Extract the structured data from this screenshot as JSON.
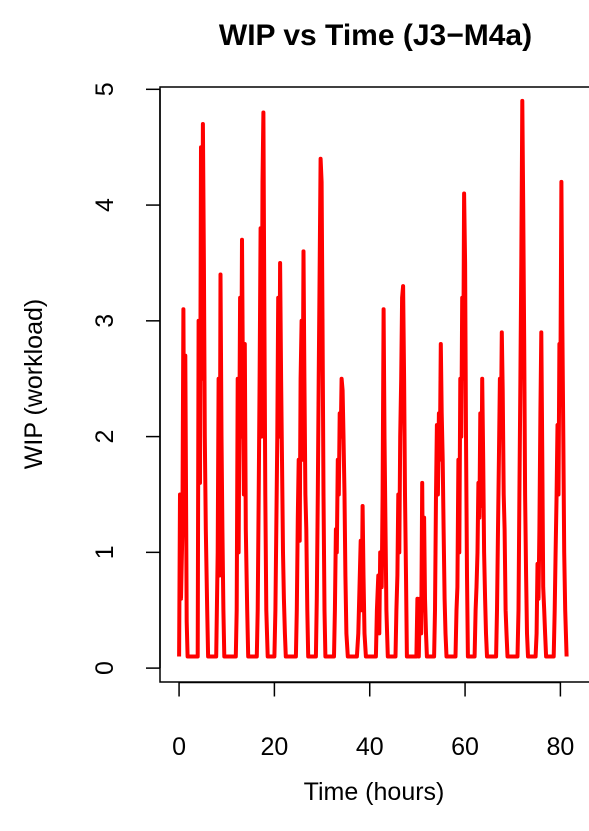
{
  "chart_data": {
    "type": "line",
    "title": "WIP vs Time (J3−M4a)",
    "xlabel": "Time (hours)",
    "ylabel": "WIP (workload)",
    "xlim": [
      -4,
      86
    ],
    "ylim": [
      -0.12,
      5.02
    ],
    "x_ticks": [
      0,
      20,
      40,
      60,
      80
    ],
    "y_ticks": [
      0,
      1,
      2,
      3,
      4,
      5
    ],
    "series_color": "#ff0000",
    "series": [
      {
        "x": [
          0,
          0.2,
          0.4,
          0.7,
          0.9,
          1.1,
          1.3,
          1.6,
          1.8,
          2.0,
          2.2,
          2.4,
          3.9,
          4.1,
          4.4,
          4.6,
          4.8,
          5.0,
          5.2,
          5.4,
          5.6,
          5.9,
          6.1,
          6.4,
          7.6,
          7.8,
          8.1,
          8.3,
          8.5,
          8.7,
          8.9,
          9.1,
          9.3,
          9.5,
          9.7,
          10.0,
          11.6,
          11.9,
          12.1,
          12.3,
          12.5,
          12.8,
          13.0,
          13.2,
          13.4,
          13.6,
          13.8,
          14.0,
          14.3,
          14.5,
          14.7,
          15.0,
          16.0,
          16.3,
          16.5,
          16.7,
          16.9,
          17.1,
          17.3,
          17.5,
          17.7,
          17.9,
          18.1,
          18.3,
          18.6,
          19.8,
          20.0,
          20.2,
          20.4,
          20.6,
          20.8,
          21.0,
          21.2,
          21.4,
          21.6,
          21.8,
          22.0,
          22.2,
          22.4,
          22.6,
          22.8,
          23.0,
          24.3,
          24.5,
          24.7,
          24.9,
          25.1,
          25.3,
          25.5,
          25.7,
          25.9,
          26.1,
          26.3,
          26.5,
          26.7,
          26.9,
          27.1,
          27.3,
          28.5,
          28.7,
          28.9,
          29.1,
          29.3,
          29.5,
          29.7,
          29.9,
          30.1,
          30.3,
          30.5,
          30.7,
          32.3,
          32.5,
          32.7,
          32.9,
          33.1,
          33.3,
          33.5,
          33.7,
          33.9,
          34.1,
          34.3,
          34.5,
          34.7,
          34.9,
          35.1,
          35.4,
          37.0,
          37.3,
          37.6,
          37.8,
          38.1,
          38.3,
          38.5,
          38.7,
          38.9,
          39.2,
          41.0,
          41.3,
          41.5,
          41.8,
          42.0,
          42.2,
          42.5,
          42.7,
          42.9,
          43.1,
          43.3,
          43.5,
          43.8,
          44.0,
          45.2,
          45.4,
          45.6,
          45.8,
          46.0,
          46.2,
          46.4,
          46.6,
          46.8,
          47.0,
          47.2,
          47.4,
          47.6,
          47.8,
          49.8,
          50.0,
          50.3,
          50.5,
          50.8,
          51.0,
          51.2,
          51.4,
          51.6,
          51.8,
          52.0,
          53.3,
          53.5,
          53.7,
          53.9,
          54.1,
          54.3,
          54.5,
          54.7,
          54.9,
          55.1,
          55.3,
          55.5,
          55.7,
          55.9,
          56.1,
          56.3,
          57.8,
          58.0,
          58.2,
          58.4,
          58.6,
          58.8,
          59.0,
          59.2,
          59.4,
          59.6,
          59.8,
          60.0,
          60.2,
          60.4,
          60.6,
          61.8,
          62.0,
          62.2,
          62.4,
          62.6,
          62.8,
          63.0,
          63.2,
          63.4,
          63.6,
          63.8,
          64.0,
          64.2,
          64.4,
          64.6,
          64.8,
          66.3,
          66.5,
          66.7,
          66.9,
          67.1,
          67.3,
          67.5,
          67.7,
          67.9,
          68.1,
          68.3,
          68.5,
          68.7,
          68.9,
          69.1,
          69.3,
          70.8,
          71.0,
          71.2,
          71.4,
          71.6,
          71.8,
          72.0,
          72.2,
          72.4,
          72.6,
          72.8,
          73.0,
          73.2,
          73.4,
          73.6,
          74.8,
          75.0,
          75.2,
          75.4,
          75.6,
          75.8,
          76.0,
          76.2,
          76.4,
          76.6,
          76.8,
          77.0,
          77.2,
          78.4,
          78.6,
          78.8,
          79.0,
          79.2,
          79.4,
          79.6,
          79.8,
          80.0,
          80.2,
          80.4,
          80.6,
          80.8,
          81.0,
          81.3
        ],
        "y": [
          0.1,
          1.5,
          0.6,
          1.2,
          3.1,
          1.5,
          2.7,
          0.4,
          0.1,
          0.1,
          0.1,
          0.1,
          0.1,
          3.0,
          1.6,
          4.5,
          2.5,
          4.7,
          3.5,
          2.0,
          1.2,
          0.5,
          0.1,
          0.1,
          0.1,
          0.1,
          1.0,
          2.5,
          0.8,
          3.4,
          2.0,
          1.2,
          0.5,
          0.1,
          0.1,
          0.1,
          0.1,
          0.1,
          0.5,
          2.5,
          1.0,
          3.2,
          2.0,
          3.7,
          2.5,
          1.5,
          2.8,
          1.2,
          0.5,
          0.1,
          0.1,
          0.1,
          0.1,
          0.1,
          0.5,
          1.5,
          2.5,
          3.8,
          2.0,
          4.2,
          4.8,
          3.0,
          1.5,
          0.5,
          0.1,
          0.1,
          0.1,
          0.5,
          1.2,
          2.0,
          3.2,
          2.0,
          3.5,
          2.5,
          1.8,
          1.0,
          0.6,
          0.3,
          0.1,
          0.1,
          0.1,
          0.1,
          0.1,
          0.1,
          0.5,
          1.3,
          1.8,
          1.1,
          2.5,
          3.0,
          1.8,
          3.6,
          2.5,
          1.5,
          1.2,
          0.5,
          0.1,
          0.1,
          0.1,
          0.1,
          0.6,
          1.5,
          2.5,
          3.5,
          4.4,
          4.2,
          3.0,
          1.5,
          0.5,
          0.1,
          0.1,
          0.1,
          0.5,
          1.2,
          1.0,
          1.8,
          1.5,
          2.2,
          2.0,
          2.5,
          2.4,
          2.0,
          1.5,
          0.8,
          0.3,
          0.1,
          0.1,
          0.1,
          0.3,
          0.6,
          1.1,
          0.5,
          1.4,
          0.8,
          0.3,
          0.1,
          0.1,
          0.1,
          0.5,
          0.8,
          0.3,
          1.0,
          0.7,
          1.5,
          3.1,
          2.0,
          1.2,
          0.5,
          0.1,
          0.1,
          0.1,
          0.1,
          0.5,
          0.8,
          1.5,
          1.0,
          2.0,
          2.5,
          3.2,
          3.3,
          2.5,
          1.5,
          0.8,
          0.1,
          0.1,
          0.6,
          0.1,
          0.6,
          0.3,
          1.6,
          0.5,
          1.3,
          0.6,
          0.3,
          0.1,
          0.1,
          0.1,
          0.5,
          1.5,
          2.1,
          1.5,
          2.2,
          1.8,
          2.8,
          2.2,
          1.8,
          1.2,
          0.6,
          0.3,
          0.1,
          0.1,
          0.1,
          0.1,
          0.5,
          0.7,
          1.8,
          1.0,
          2.5,
          2.0,
          3.2,
          2.5,
          4.1,
          3.5,
          2.0,
          0.8,
          0.1,
          0.1,
          0.1,
          0.5,
          0.7,
          1.0,
          1.6,
          1.3,
          2.2,
          1.4,
          2.5,
          1.8,
          1.0,
          0.6,
          0.3,
          0.1,
          0.1,
          0.1,
          0.1,
          0.5,
          1.2,
          1.8,
          2.5,
          2.0,
          2.9,
          2.4,
          1.5,
          1.2,
          0.5,
          0.3,
          0.1,
          0.1,
          0.1,
          0.1,
          0.1,
          0.5,
          1.5,
          2.5,
          3.5,
          4.9,
          4.0,
          2.8,
          1.5,
          0.8,
          0.3,
          0.1,
          0.1,
          0.1,
          0.1,
          0.3,
          0.9,
          0.6,
          1.2,
          2.2,
          2.9,
          1.8,
          0.7,
          0.5,
          0.3,
          0.1,
          0.1,
          0.1,
          0.1,
          0.5,
          1.0,
          1.5,
          2.1,
          1.5,
          2.8,
          2.5,
          4.2,
          3.0,
          2.0,
          1.0,
          0.5,
          0.1
        ]
      }
    ]
  }
}
